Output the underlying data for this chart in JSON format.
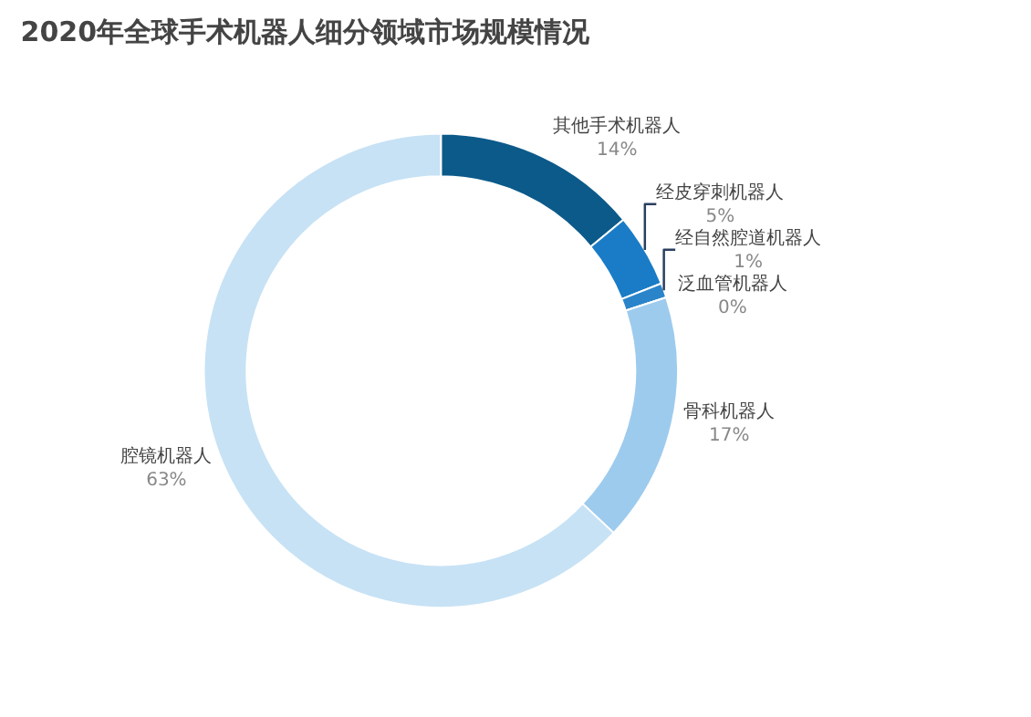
{
  "chart_data": {
    "type": "donut",
    "title": "2020年全球手术机器人细分领域市场规模情况",
    "categories": [
      "其他手术机器人",
      "经皮穿刺机器人",
      "经自然腔道机器人",
      "泛血管机器人",
      "骨科机器人",
      "腔镜机器人"
    ],
    "values": [
      14,
      5,
      1,
      0,
      17,
      63
    ],
    "value_labels": [
      "14%",
      "5%",
      "1%",
      "0%",
      "17%",
      "63%"
    ],
    "colors": [
      "#0b5a8a",
      "#1a7cc6",
      "#2a84c9",
      "#5aa3d8",
      "#9dcbee",
      "#c7e2f5"
    ],
    "legend": false
  }
}
